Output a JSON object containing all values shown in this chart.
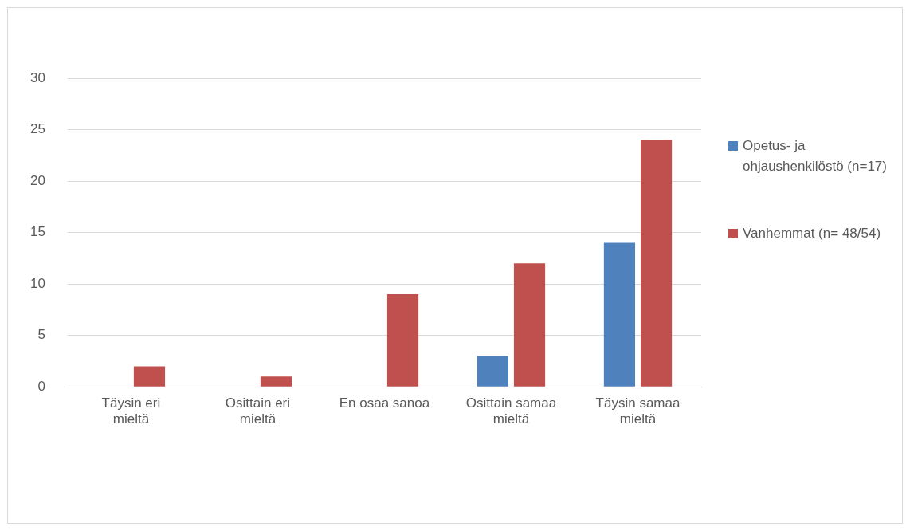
{
  "chart_data": {
    "type": "bar",
    "categories": [
      "Täysin eri mieltä",
      "Osittain eri mieltä",
      "En osaa sanoa",
      "Osittain samaa mieltä",
      "Täysin samaa mieltä"
    ],
    "series": [
      {
        "name": "Opetus- ja ohjaushenkilöstö (n=17)",
        "color": "#4f81bd",
        "values": [
          0,
          0,
          0,
          3,
          14
        ]
      },
      {
        "name": "Vanhemmat (n= 48/54)",
        "color": "#c0504d",
        "values": [
          2,
          1,
          9,
          12,
          24
        ]
      }
    ],
    "ylim": [
      0,
      30
    ],
    "yticks": [
      0,
      5,
      10,
      15,
      20,
      25,
      30
    ],
    "grid": "y",
    "legend": "right"
  }
}
